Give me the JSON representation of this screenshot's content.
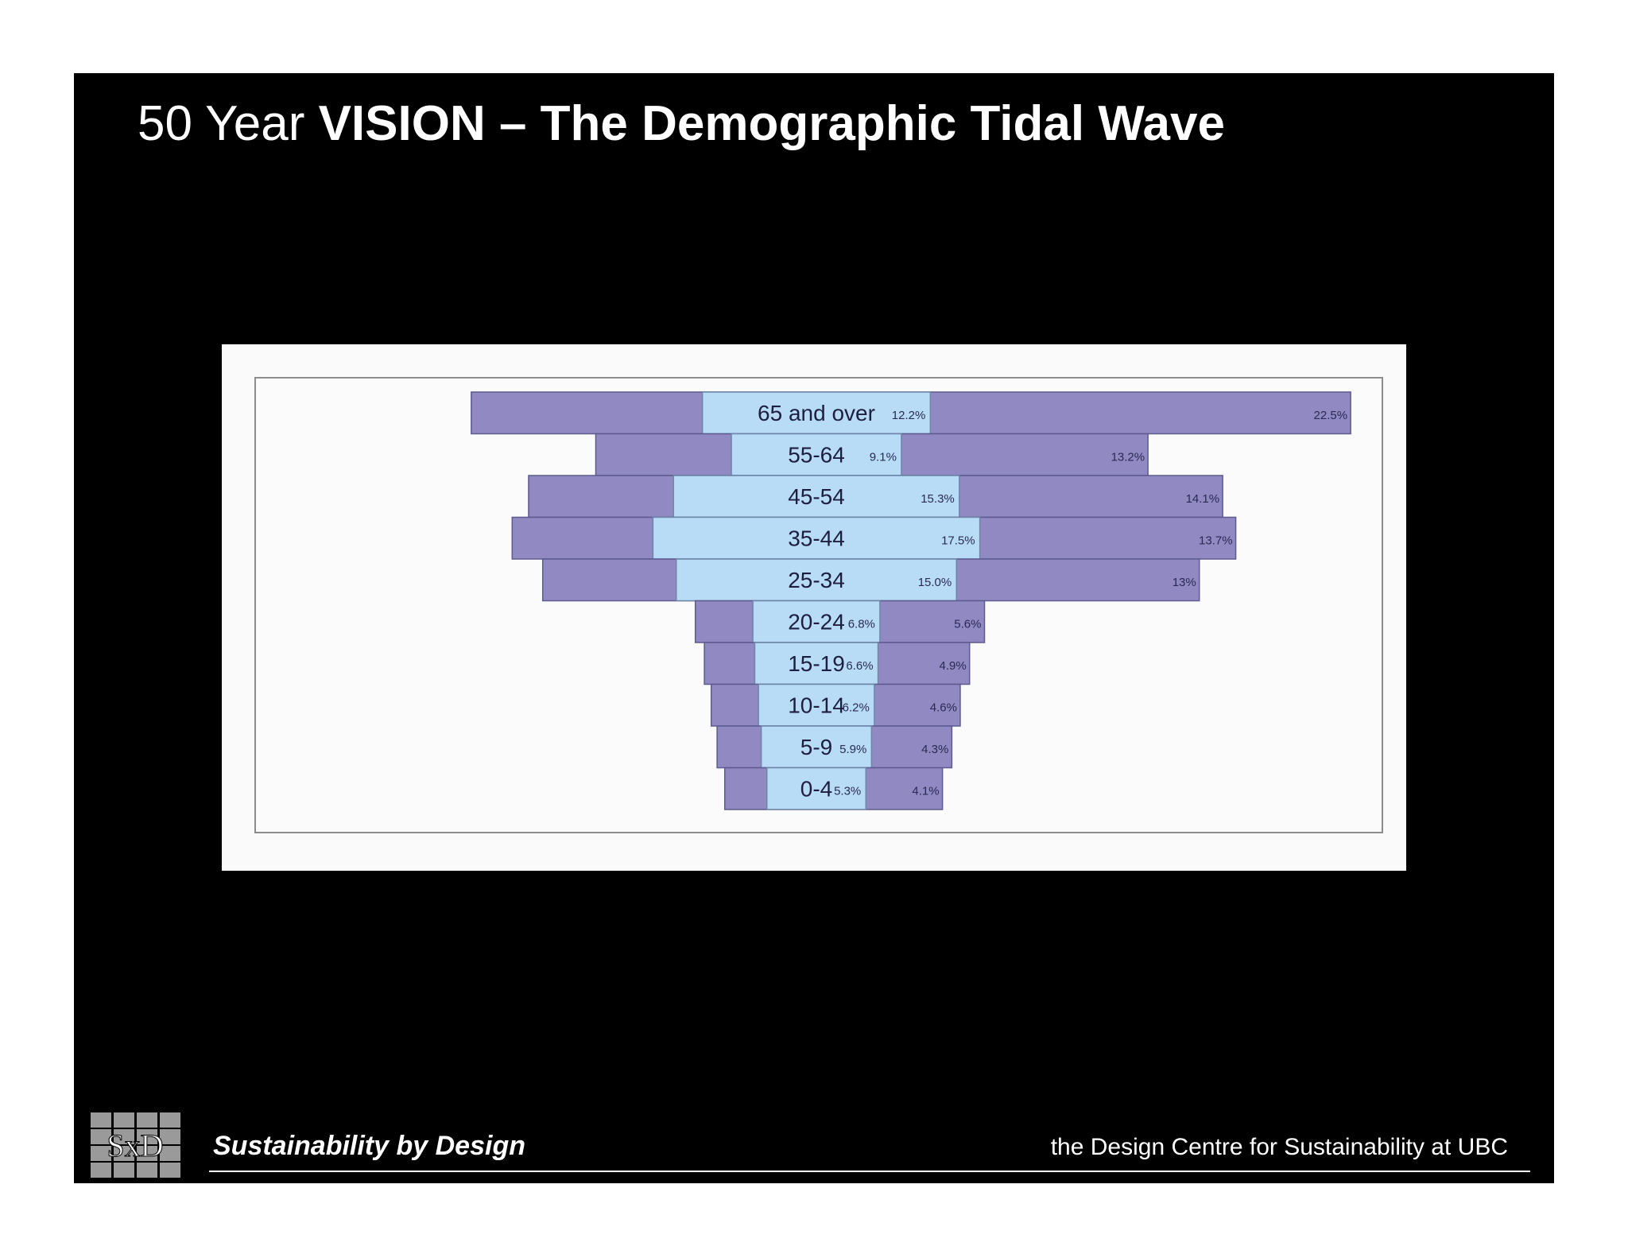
{
  "slide": {
    "title_prefix": "50 Year ",
    "title_bold": "VISION – The Demographic Tidal Wave",
    "footer_left": "Sustainability by Design",
    "footer_right": "the Design Centre for Sustainability at UBC",
    "logo_text": "SxD"
  },
  "colors": {
    "background": "#000000",
    "inner_series": "#b8dcf6",
    "outer_series": "#9189c2",
    "text": "#ffffff"
  },
  "chart_data": {
    "type": "bar",
    "subtype": "tapered population pyramid (age distribution comparison)",
    "categories": [
      "65 and over",
      "55-64",
      "45-54",
      "35-44",
      "25-34",
      "20-24",
      "15-19",
      "10-14",
      "5-9",
      "0-4"
    ],
    "series": [
      {
        "values": [
          12.2,
          9.1,
          15.3,
          17.5,
          15.0,
          6.8,
          6.6,
          6.2,
          5.9,
          5.3
        ],
        "labels": [
          "12.2%",
          "9.1%",
          "15.3%",
          "17.5%",
          "15.0%",
          "6.8%",
          "6.6%",
          "6.2%",
          "5.9%",
          "5.3%"
        ],
        "color": "#b8dcf6"
      },
      {
        "values": [
          22.5,
          13.2,
          14.1,
          13.7,
          13,
          5.6,
          4.9,
          4.6,
          4.3,
          4.1
        ],
        "labels": [
          "22.5%",
          "13.2%",
          "14.1%",
          "13.7%",
          "13%",
          "5.6%",
          "4.9%",
          "4.6%",
          "4.3%",
          "4.1%"
        ],
        "color": "#9189c2"
      }
    ],
    "title": "",
    "xlabel": "",
    "ylabel": "",
    "legend": "none",
    "grid": false
  }
}
